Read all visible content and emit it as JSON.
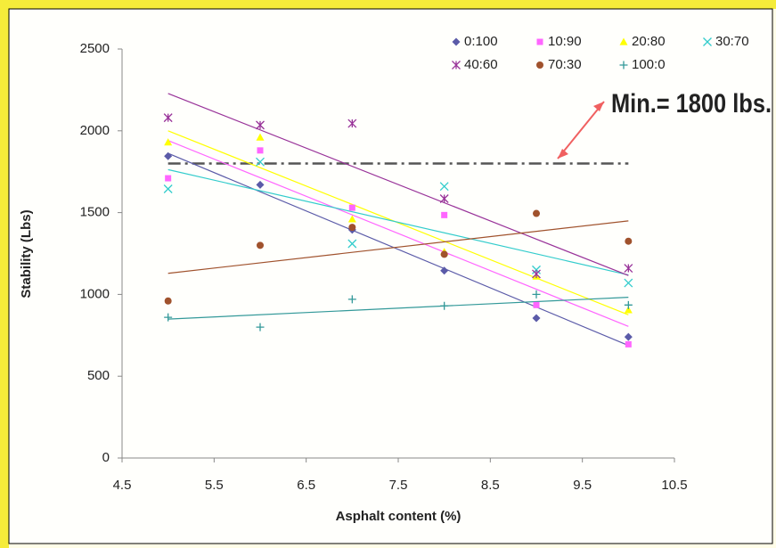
{
  "chart_data": {
    "type": "scatter",
    "y_label": "Stability (Lbs)",
    "x_label": "Asphalt content (%)",
    "x": [
      5,
      6,
      7,
      8,
      9,
      10
    ],
    "series": [
      {
        "name": "0:100",
        "color": "#5b5ba8",
        "values": [
          1845,
          1670,
          1395,
          1145,
          855,
          740
        ]
      },
      {
        "name": "10:90",
        "color": "#ff66ff",
        "values": [
          1710,
          1880,
          1530,
          1485,
          935,
          695
        ]
      },
      {
        "name": "20:80",
        "color": "#ffff00",
        "values": [
          1930,
          1960,
          1460,
          1260,
          1110,
          905
        ]
      },
      {
        "name": "30:70",
        "color": "#33cccc",
        "values": [
          1645,
          1810,
          1310,
          1660,
          1150,
          1070
        ]
      },
      {
        "name": "40:60",
        "color": "#993399",
        "values": [
          2080,
          2035,
          2045,
          1585,
          1125,
          1160
        ]
      },
      {
        "name": "70:30",
        "color": "#a0522d",
        "values": [
          960,
          1300,
          1410,
          1245,
          1495,
          1325
        ]
      },
      {
        "name": "100:0",
        "color": "#339999",
        "values": [
          860,
          800,
          970,
          930,
          1000,
          935
        ]
      }
    ],
    "trendlines": true,
    "min_line": 1800,
    "annotation": "Min.= 1800 lbs.",
    "xlim": [
      4.5,
      10.5
    ],
    "xticks": [
      4.5,
      5.5,
      6.5,
      7.5,
      8.5,
      9.5,
      10.5
    ],
    "ylim": [
      0,
      2500
    ],
    "yticks": [
      0,
      500,
      1000,
      1500,
      2000,
      2500
    ],
    "grid": false
  }
}
